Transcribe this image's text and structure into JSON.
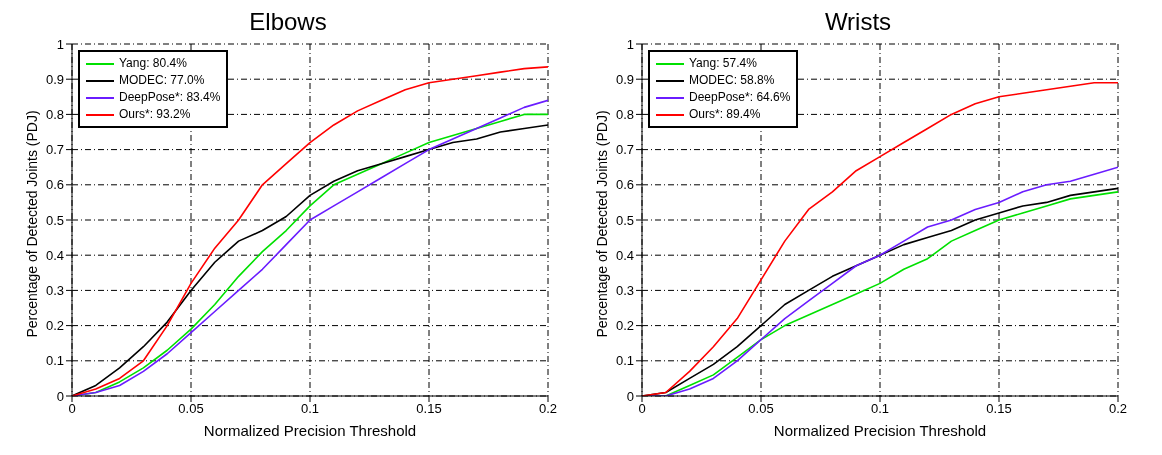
{
  "chart_data": [
    {
      "type": "line",
      "title": "Elbows",
      "xlabel": "Normalized Precision Threshold",
      "ylabel": "Percentage of Detected Joints (PDJ)",
      "x": [
        0,
        0.01,
        0.02,
        0.03,
        0.04,
        0.05,
        0.06,
        0.07,
        0.08,
        0.09,
        0.1,
        0.11,
        0.12,
        0.13,
        0.14,
        0.15,
        0.16,
        0.17,
        0.18,
        0.19,
        0.2
      ],
      "xlim": [
        0,
        0.2
      ],
      "xticks": [
        0,
        0.05,
        0.1,
        0.15,
        0.2
      ],
      "ylim": [
        0,
        1
      ],
      "yticks": [
        0,
        0.1,
        0.2,
        0.3,
        0.4,
        0.5,
        0.6,
        0.7,
        0.8,
        0.9,
        1
      ],
      "grid": true,
      "legend": "top left",
      "marker": "none",
      "series": [
        {
          "name": "Yang: 80.4%",
          "color": "#00e000",
          "values": [
            0,
            0.01,
            0.04,
            0.08,
            0.13,
            0.19,
            0.26,
            0.34,
            0.41,
            0.47,
            0.54,
            0.6,
            0.63,
            0.66,
            0.69,
            0.72,
            0.74,
            0.76,
            0.78,
            0.8,
            0.8
          ]
        },
        {
          "name": "MODEC: 77.0%",
          "color": "#000000",
          "values": [
            0,
            0.03,
            0.08,
            0.14,
            0.21,
            0.3,
            0.38,
            0.44,
            0.47,
            0.51,
            0.57,
            0.61,
            0.64,
            0.66,
            0.68,
            0.7,
            0.72,
            0.73,
            0.75,
            0.76,
            0.77
          ]
        },
        {
          "name": "DeepPose*: 83.4%",
          "color": "#6a1cff",
          "values": [
            0,
            0.01,
            0.03,
            0.07,
            0.12,
            0.18,
            0.24,
            0.3,
            0.36,
            0.43,
            0.5,
            0.54,
            0.58,
            0.62,
            0.66,
            0.7,
            0.73,
            0.76,
            0.79,
            0.82,
            0.84
          ]
        },
        {
          "name": "Ours*: 93.2%",
          "color": "#ff0000",
          "values": [
            0,
            0.02,
            0.05,
            0.1,
            0.2,
            0.32,
            0.42,
            0.5,
            0.6,
            0.66,
            0.72,
            0.77,
            0.81,
            0.84,
            0.87,
            0.89,
            0.9,
            0.91,
            0.92,
            0.93,
            0.935
          ]
        }
      ]
    },
    {
      "type": "line",
      "title": "Wrists",
      "xlabel": "Normalized Precision Threshold",
      "ylabel": "Percentage of Detected Joints (PDJ)",
      "x": [
        0,
        0.01,
        0.02,
        0.03,
        0.04,
        0.05,
        0.06,
        0.07,
        0.08,
        0.09,
        0.1,
        0.11,
        0.12,
        0.13,
        0.14,
        0.15,
        0.16,
        0.17,
        0.18,
        0.19,
        0.2
      ],
      "xlim": [
        0,
        0.2
      ],
      "xticks": [
        0,
        0.05,
        0.1,
        0.15,
        0.2
      ],
      "ylim": [
        0,
        1
      ],
      "yticks": [
        0,
        0.1,
        0.2,
        0.3,
        0.4,
        0.5,
        0.6,
        0.7,
        0.8,
        0.9,
        1
      ],
      "grid": true,
      "legend": "top left",
      "marker": "none",
      "series": [
        {
          "name": "Yang: 57.4%",
          "color": "#00e000",
          "values": [
            0,
            0,
            0.03,
            0.06,
            0.11,
            0.16,
            0.2,
            0.23,
            0.26,
            0.29,
            0.32,
            0.36,
            0.39,
            0.44,
            0.47,
            0.5,
            0.52,
            0.54,
            0.56,
            0.57,
            0.58
          ]
        },
        {
          "name": "MODEC: 58.8%",
          "color": "#000000",
          "values": [
            0,
            0.01,
            0.05,
            0.09,
            0.14,
            0.2,
            0.26,
            0.3,
            0.34,
            0.37,
            0.4,
            0.43,
            0.45,
            0.47,
            0.5,
            0.52,
            0.54,
            0.55,
            0.57,
            0.58,
            0.59
          ]
        },
        {
          "name": "DeepPose*: 64.6%",
          "color": "#6a1cff",
          "values": [
            0,
            0,
            0.02,
            0.05,
            0.1,
            0.16,
            0.22,
            0.27,
            0.32,
            0.37,
            0.4,
            0.44,
            0.48,
            0.5,
            0.53,
            0.55,
            0.58,
            0.6,
            0.61,
            0.63,
            0.65
          ]
        },
        {
          "name": "Ours*: 89.4%",
          "color": "#ff0000",
          "values": [
            0,
            0.01,
            0.07,
            0.14,
            0.22,
            0.33,
            0.44,
            0.53,
            0.58,
            0.64,
            0.68,
            0.72,
            0.76,
            0.8,
            0.83,
            0.85,
            0.86,
            0.87,
            0.88,
            0.89,
            0.89
          ]
        }
      ]
    }
  ]
}
